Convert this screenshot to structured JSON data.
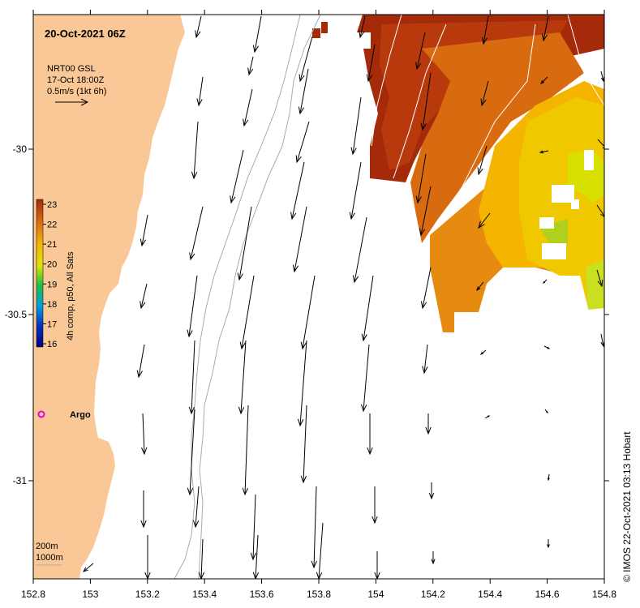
{
  "title": "20-Oct-2021 06Z",
  "legend": {
    "product": "NRT00 GSL",
    "date": "17-Oct 18:00Z",
    "scale": "0.5m/s (1kt 6h)"
  },
  "colorbar": {
    "label": "4h comp, p50, All Sats",
    "ticks": [
      "23",
      "22",
      "21",
      "20",
      "19",
      "18",
      "17",
      "16"
    ],
    "min": 16,
    "max": 23
  },
  "argo_label": "Argo",
  "isobaths": {
    "shallow": "200m",
    "deep": "1000m"
  },
  "credit": "© IMOS 22-Oct-2021 03:13 Hobart",
  "x_ticks": [
    "152.8",
    "153",
    "153.2",
    "153.4",
    "153.6",
    "153.8",
    "154",
    "154.2",
    "154.4",
    "154.6",
    "154.8"
  ],
  "y_ticks": [
    "-30",
    "-30.5",
    "-31"
  ],
  "colors": {
    "land": "#f9c896",
    "sst_hot": "#a52a0a",
    "sst_warm": "#d86a10",
    "sst_mid": "#f4b400",
    "sst_cool": "#e8e800",
    "argo": "#e000e0"
  }
}
